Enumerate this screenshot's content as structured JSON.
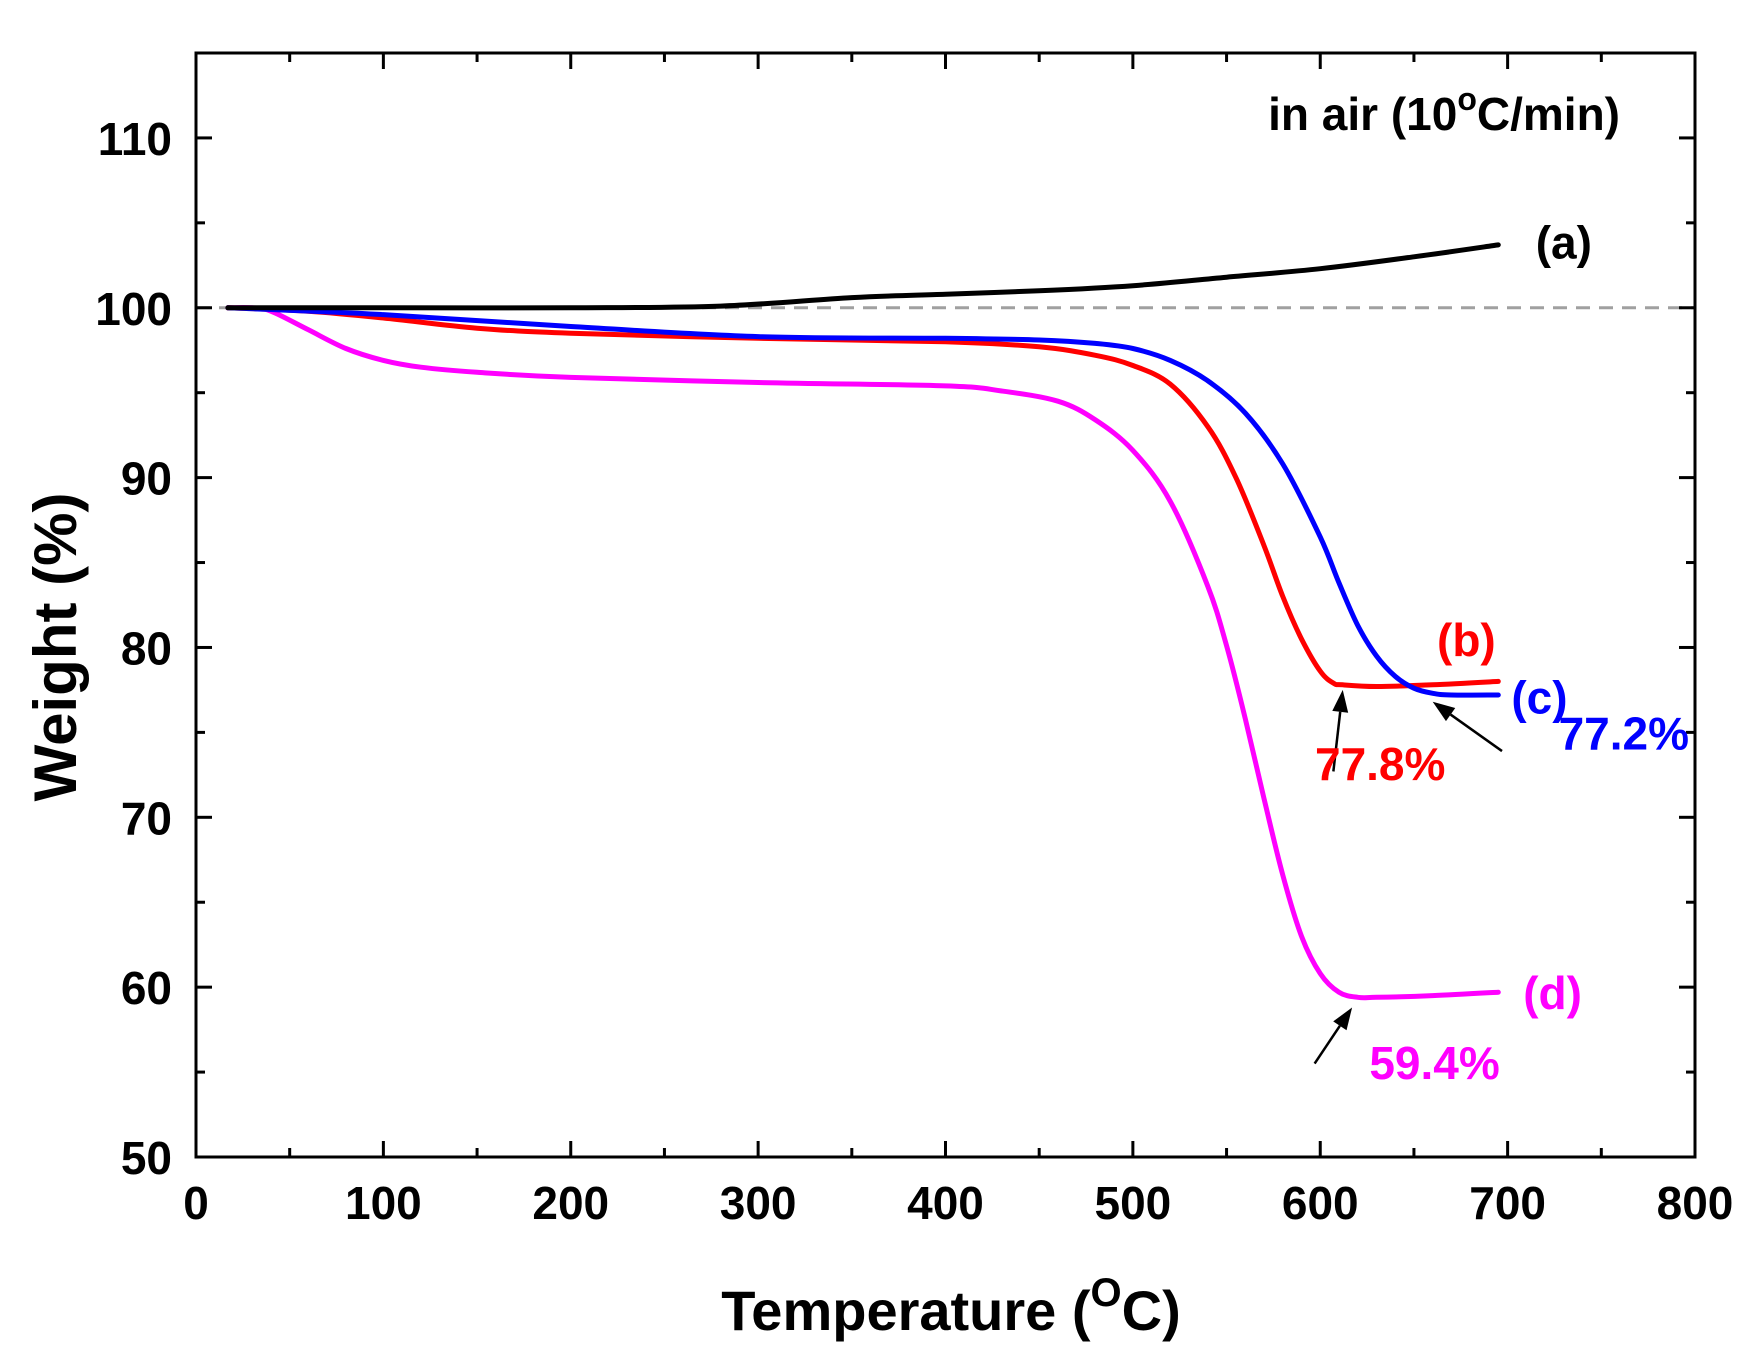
{
  "chart_data": {
    "type": "line",
    "annotation_title": {
      "prefix": "in air (10",
      "sup": "o",
      "suffix": "C/min)"
    },
    "xlabel": {
      "prefix": "Temperature (",
      "sup": "O",
      "suffix": "C)"
    },
    "ylabel": "Weight (%)",
    "xlim": [
      0,
      800
    ],
    "ylim": [
      50,
      115
    ],
    "xticks": [
      0,
      100,
      200,
      300,
      400,
      500,
      600,
      700,
      800
    ],
    "xtick_labels": [
      "0",
      "100",
      "200",
      "300",
      "400",
      "500",
      "600",
      "700",
      "800"
    ],
    "yticks": [
      50,
      60,
      70,
      80,
      90,
      100,
      110
    ],
    "ytick_labels": [
      "50",
      "60",
      "70",
      "80",
      "90",
      "100",
      "110"
    ],
    "reference_line": {
      "y": 100,
      "color": "#a0a0a0",
      "style": "dashed"
    },
    "series": [
      {
        "name": "(a)",
        "color": "#000000",
        "x": [
          17,
          100,
          200,
          280,
          350,
          400,
          450,
          500,
          550,
          600,
          650,
          695
        ],
        "y": [
          100,
          100,
          100,
          100.1,
          100.6,
          100.8,
          101.0,
          101.3,
          101.8,
          102.3,
          103.0,
          103.7
        ]
      },
      {
        "name": "(b)",
        "color": "#ff0000",
        "x": [
          17,
          60,
          100,
          150,
          200,
          300,
          400,
          450,
          480,
          500,
          520,
          540,
          555,
          570,
          580,
          590,
          600,
          607,
          612,
          630,
          660,
          695
        ],
        "y": [
          100,
          99.8,
          99.4,
          98.8,
          98.5,
          98.2,
          98.0,
          97.7,
          97.2,
          96.6,
          95.5,
          93.0,
          90.0,
          86.0,
          83.0,
          80.5,
          78.6,
          77.9,
          77.8,
          77.7,
          77.8,
          78.0
        ]
      },
      {
        "name": "(c)",
        "color": "#0000ff",
        "x": [
          17,
          100,
          200,
          300,
          400,
          450,
          480,
          500,
          520,
          540,
          560,
          580,
          600,
          610,
          620,
          630,
          640,
          650,
          660,
          670,
          695
        ],
        "y": [
          100,
          99.6,
          98.9,
          98.3,
          98.2,
          98.1,
          97.9,
          97.6,
          96.9,
          95.7,
          93.8,
          90.8,
          86.5,
          83.8,
          81.3,
          79.5,
          78.3,
          77.6,
          77.3,
          77.2,
          77.2
        ]
      },
      {
        "name": "(d)",
        "color": "#ff00ff",
        "x": [
          17,
          30,
          40,
          60,
          80,
          100,
          120,
          150,
          200,
          300,
          400,
          430,
          460,
          480,
          500,
          520,
          540,
          550,
          560,
          570,
          580,
          590,
          600,
          610,
          620,
          630,
          660,
          695
        ],
        "y": [
          100,
          100,
          99.8,
          98.7,
          97.6,
          96.9,
          96.5,
          96.2,
          95.9,
          95.6,
          95.4,
          95.1,
          94.5,
          93.4,
          91.6,
          88.6,
          83.6,
          80.1,
          75.8,
          71.1,
          66.6,
          63.0,
          60.8,
          59.7,
          59.4,
          59.4,
          59.5,
          59.7
        ]
      }
    ],
    "annotations": [
      {
        "text": "(a)",
        "color": "#000000",
        "x": 730,
        "y": 103.9
      },
      {
        "text": "(b)",
        "color": "#ff0000",
        "x": 678,
        "y": 80.5
      },
      {
        "text": "(c)",
        "color": "#0000ff",
        "x": 717,
        "y": 77.1
      },
      {
        "text": "(d)",
        "color": "#ff00ff",
        "x": 724,
        "y": 59.7
      },
      {
        "text": "77.8%",
        "color": "#ff0000",
        "x": 632,
        "y": 73.2
      },
      {
        "text": "77.2%",
        "color": "#0000ff",
        "x": 762,
        "y": 75.0
      },
      {
        "text": "59.4%",
        "color": "#ff00ff",
        "x": 661,
        "y": 55.6
      }
    ],
    "arrows": [
      {
        "from": [
          607,
          72.7
        ],
        "to": [
          612,
          77.5
        ]
      },
      {
        "from": [
          697,
          73.9
        ],
        "to": [
          660,
          76.8
        ]
      },
      {
        "from": [
          597,
          55.5
        ],
        "to": [
          617,
          58.8
        ]
      }
    ]
  }
}
